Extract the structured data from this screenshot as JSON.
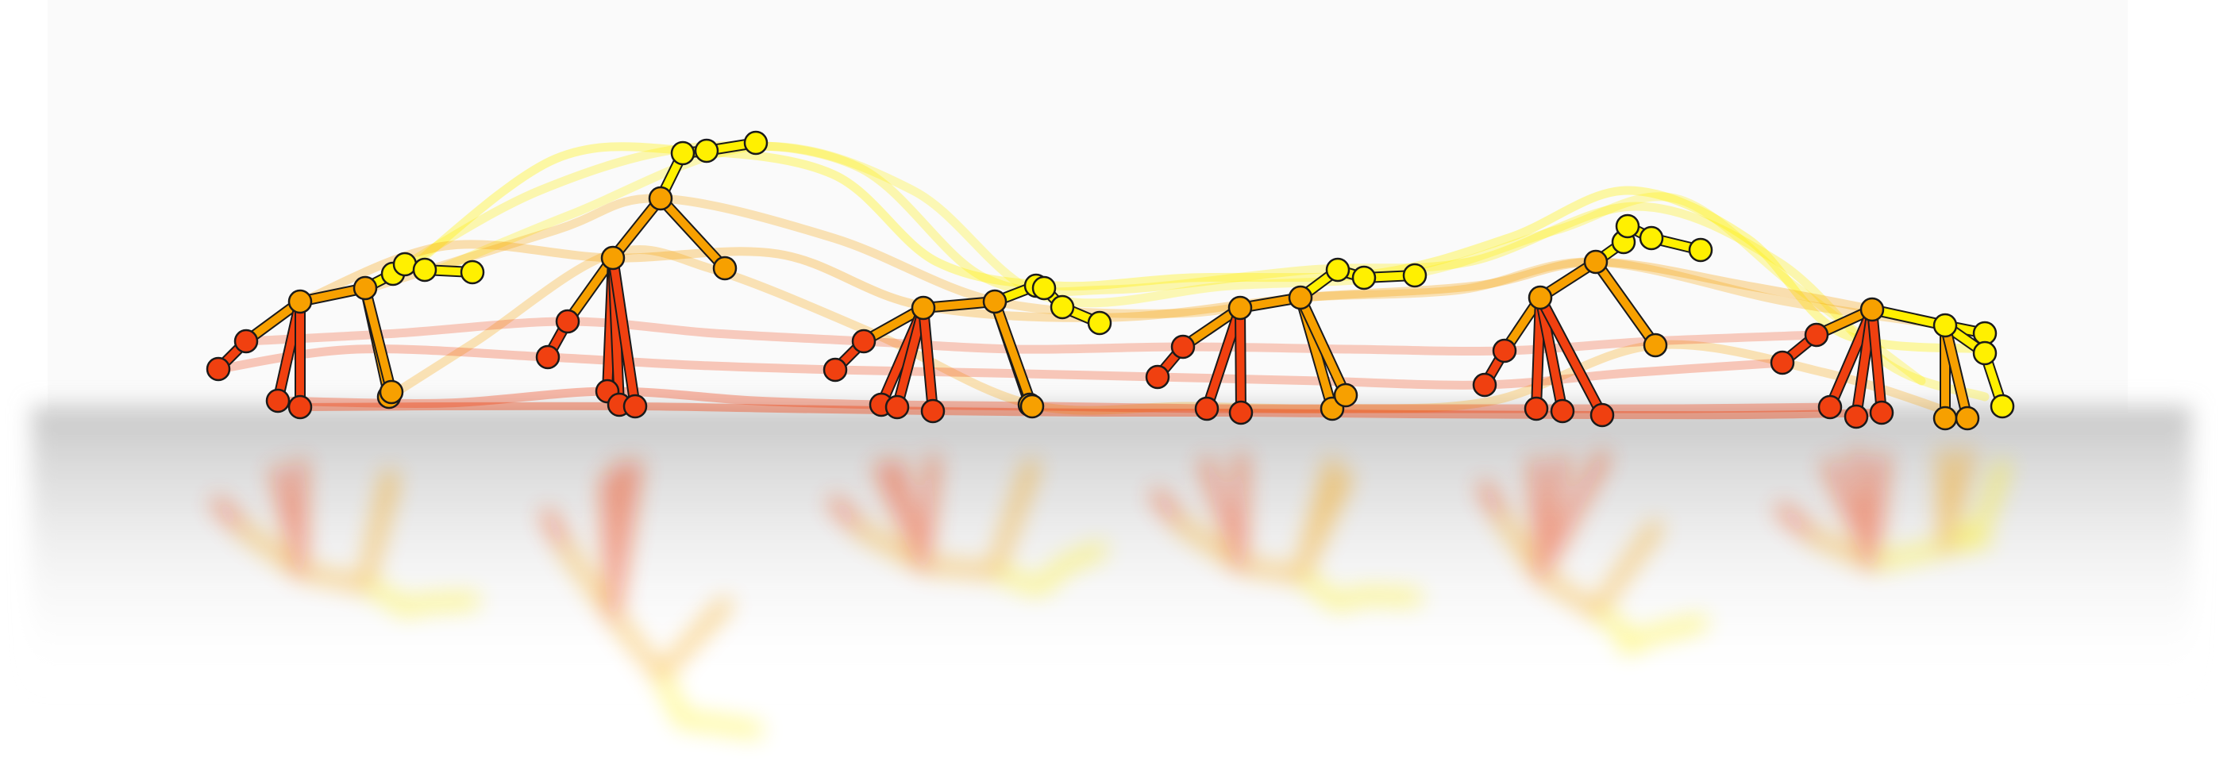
{
  "figure": {
    "type": "animation-keyframes",
    "description_visible": "",
    "color_scale": {
      "distal": "#FFF000",
      "mid": "#F7A000",
      "proximal": "#F04010"
    },
    "reflection": true,
    "keyframe_count": 6
  }
}
